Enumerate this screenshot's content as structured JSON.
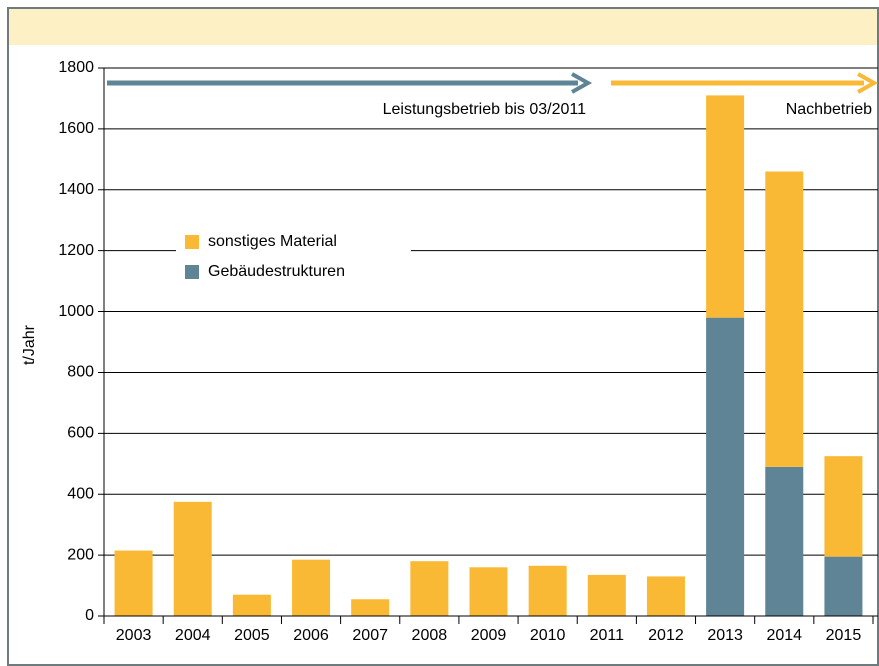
{
  "chart_data": {
    "type": "stacked_bar",
    "categories": [
      "2003",
      "2004",
      "2005",
      "2006",
      "2007",
      "2008",
      "2009",
      "2010",
      "2011",
      "2012",
      "2013",
      "2014",
      "2015"
    ],
    "series": [
      {
        "name": "Gebäudestrukturen",
        "color": "#5e8496",
        "values": [
          0,
          0,
          0,
          0,
          0,
          0,
          0,
          0,
          0,
          0,
          980,
          490,
          195
        ]
      },
      {
        "name": "sonstiges Material",
        "color": "#f9b934",
        "values": [
          215,
          375,
          70,
          185,
          55,
          180,
          160,
          165,
          135,
          130,
          730,
          970,
          330
        ]
      }
    ],
    "ylabel": "t/Jahr",
    "ylim": [
      0,
      1800
    ],
    "yticks": [
      0,
      200,
      400,
      600,
      800,
      1000,
      1200,
      1400,
      1600,
      1800
    ],
    "grid": true,
    "annotations": [
      {
        "text": "Leistungsbetrieb bis 03/2011",
        "color": "#5e8496"
      },
      {
        "text": "Nachbetrieb",
        "color": "#f9b934"
      }
    ]
  }
}
